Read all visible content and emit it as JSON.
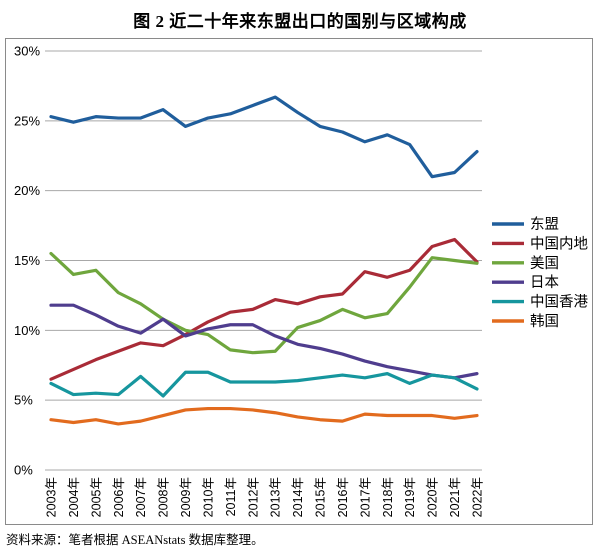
{
  "title": "图 2  近二十年来东盟出口的国别与区域构成",
  "source_note": "资料来源：笔者根据 ASEANstats 数据库整理。",
  "colors": {
    "grid": "#a8a8a8",
    "box_border": "#8a8a8a",
    "text": "#000000",
    "background": "#ffffff"
  },
  "chart_data": {
    "type": "line",
    "title": "图 2  近二十年来东盟出口的国别与区域构成",
    "categories": [
      "2003年",
      "2004年",
      "2005年",
      "2006年",
      "2007年",
      "2008年",
      "2009年",
      "2010年",
      "2011年",
      "2012年",
      "2013年",
      "2014年",
      "2015年",
      "2016年",
      "2017年",
      "2018年",
      "2019年",
      "2020年",
      "2021年",
      "2022年"
    ],
    "yticks": [
      0,
      5,
      10,
      15,
      20,
      25,
      30
    ],
    "ylim": [
      0,
      30
    ],
    "ytick_suffix": "%",
    "grid": "horizontal",
    "legend_position": "right",
    "series": [
      {
        "id": "asean",
        "name": "东盟",
        "color": "#205E9C",
        "values": [
          25.3,
          24.9,
          25.3,
          25.2,
          25.2,
          25.8,
          24.6,
          25.2,
          25.5,
          26.1,
          26.7,
          25.6,
          24.6,
          24.2,
          23.5,
          24.0,
          23.3,
          21.0,
          21.3,
          22.8
        ]
      },
      {
        "id": "china-mainland",
        "name": "中国内地",
        "color": "#A92B37",
        "values": [
          6.5,
          7.2,
          7.9,
          8.5,
          9.1,
          8.9,
          9.7,
          10.6,
          11.3,
          11.5,
          12.2,
          11.9,
          12.4,
          12.6,
          14.2,
          13.8,
          14.3,
          16.0,
          16.5,
          14.9
        ]
      },
      {
        "id": "usa",
        "name": "美国",
        "color": "#6FA63D",
        "values": [
          15.5,
          14.0,
          14.3,
          12.7,
          11.9,
          10.8,
          10.0,
          9.7,
          8.6,
          8.4,
          8.5,
          10.2,
          10.7,
          11.5,
          10.9,
          11.2,
          13.1,
          15.2,
          15.0,
          14.8
        ]
      },
      {
        "id": "japan",
        "name": "日本",
        "color": "#4F3D8E",
        "values": [
          11.8,
          11.8,
          11.1,
          10.3,
          9.8,
          10.8,
          9.6,
          10.1,
          10.4,
          10.4,
          9.6,
          9.0,
          8.7,
          8.3,
          7.8,
          7.4,
          7.1,
          6.8,
          6.6,
          6.9
        ]
      },
      {
        "id": "hong-kong",
        "name": "中国香港",
        "color": "#16969E",
        "values": [
          6.2,
          5.4,
          5.5,
          5.4,
          6.7,
          5.3,
          7.0,
          7.0,
          6.3,
          6.3,
          6.3,
          6.4,
          6.6,
          6.8,
          6.6,
          6.9,
          6.2,
          6.8,
          6.6,
          5.8
        ]
      },
      {
        "id": "south-korea",
        "name": "韩国",
        "color": "#E26B1E",
        "values": [
          3.6,
          3.4,
          3.6,
          3.3,
          3.5,
          3.9,
          4.3,
          4.4,
          4.4,
          4.3,
          4.1,
          3.8,
          3.6,
          3.5,
          4.0,
          3.9,
          3.9,
          3.9,
          3.7,
          3.9
        ]
      }
    ]
  }
}
